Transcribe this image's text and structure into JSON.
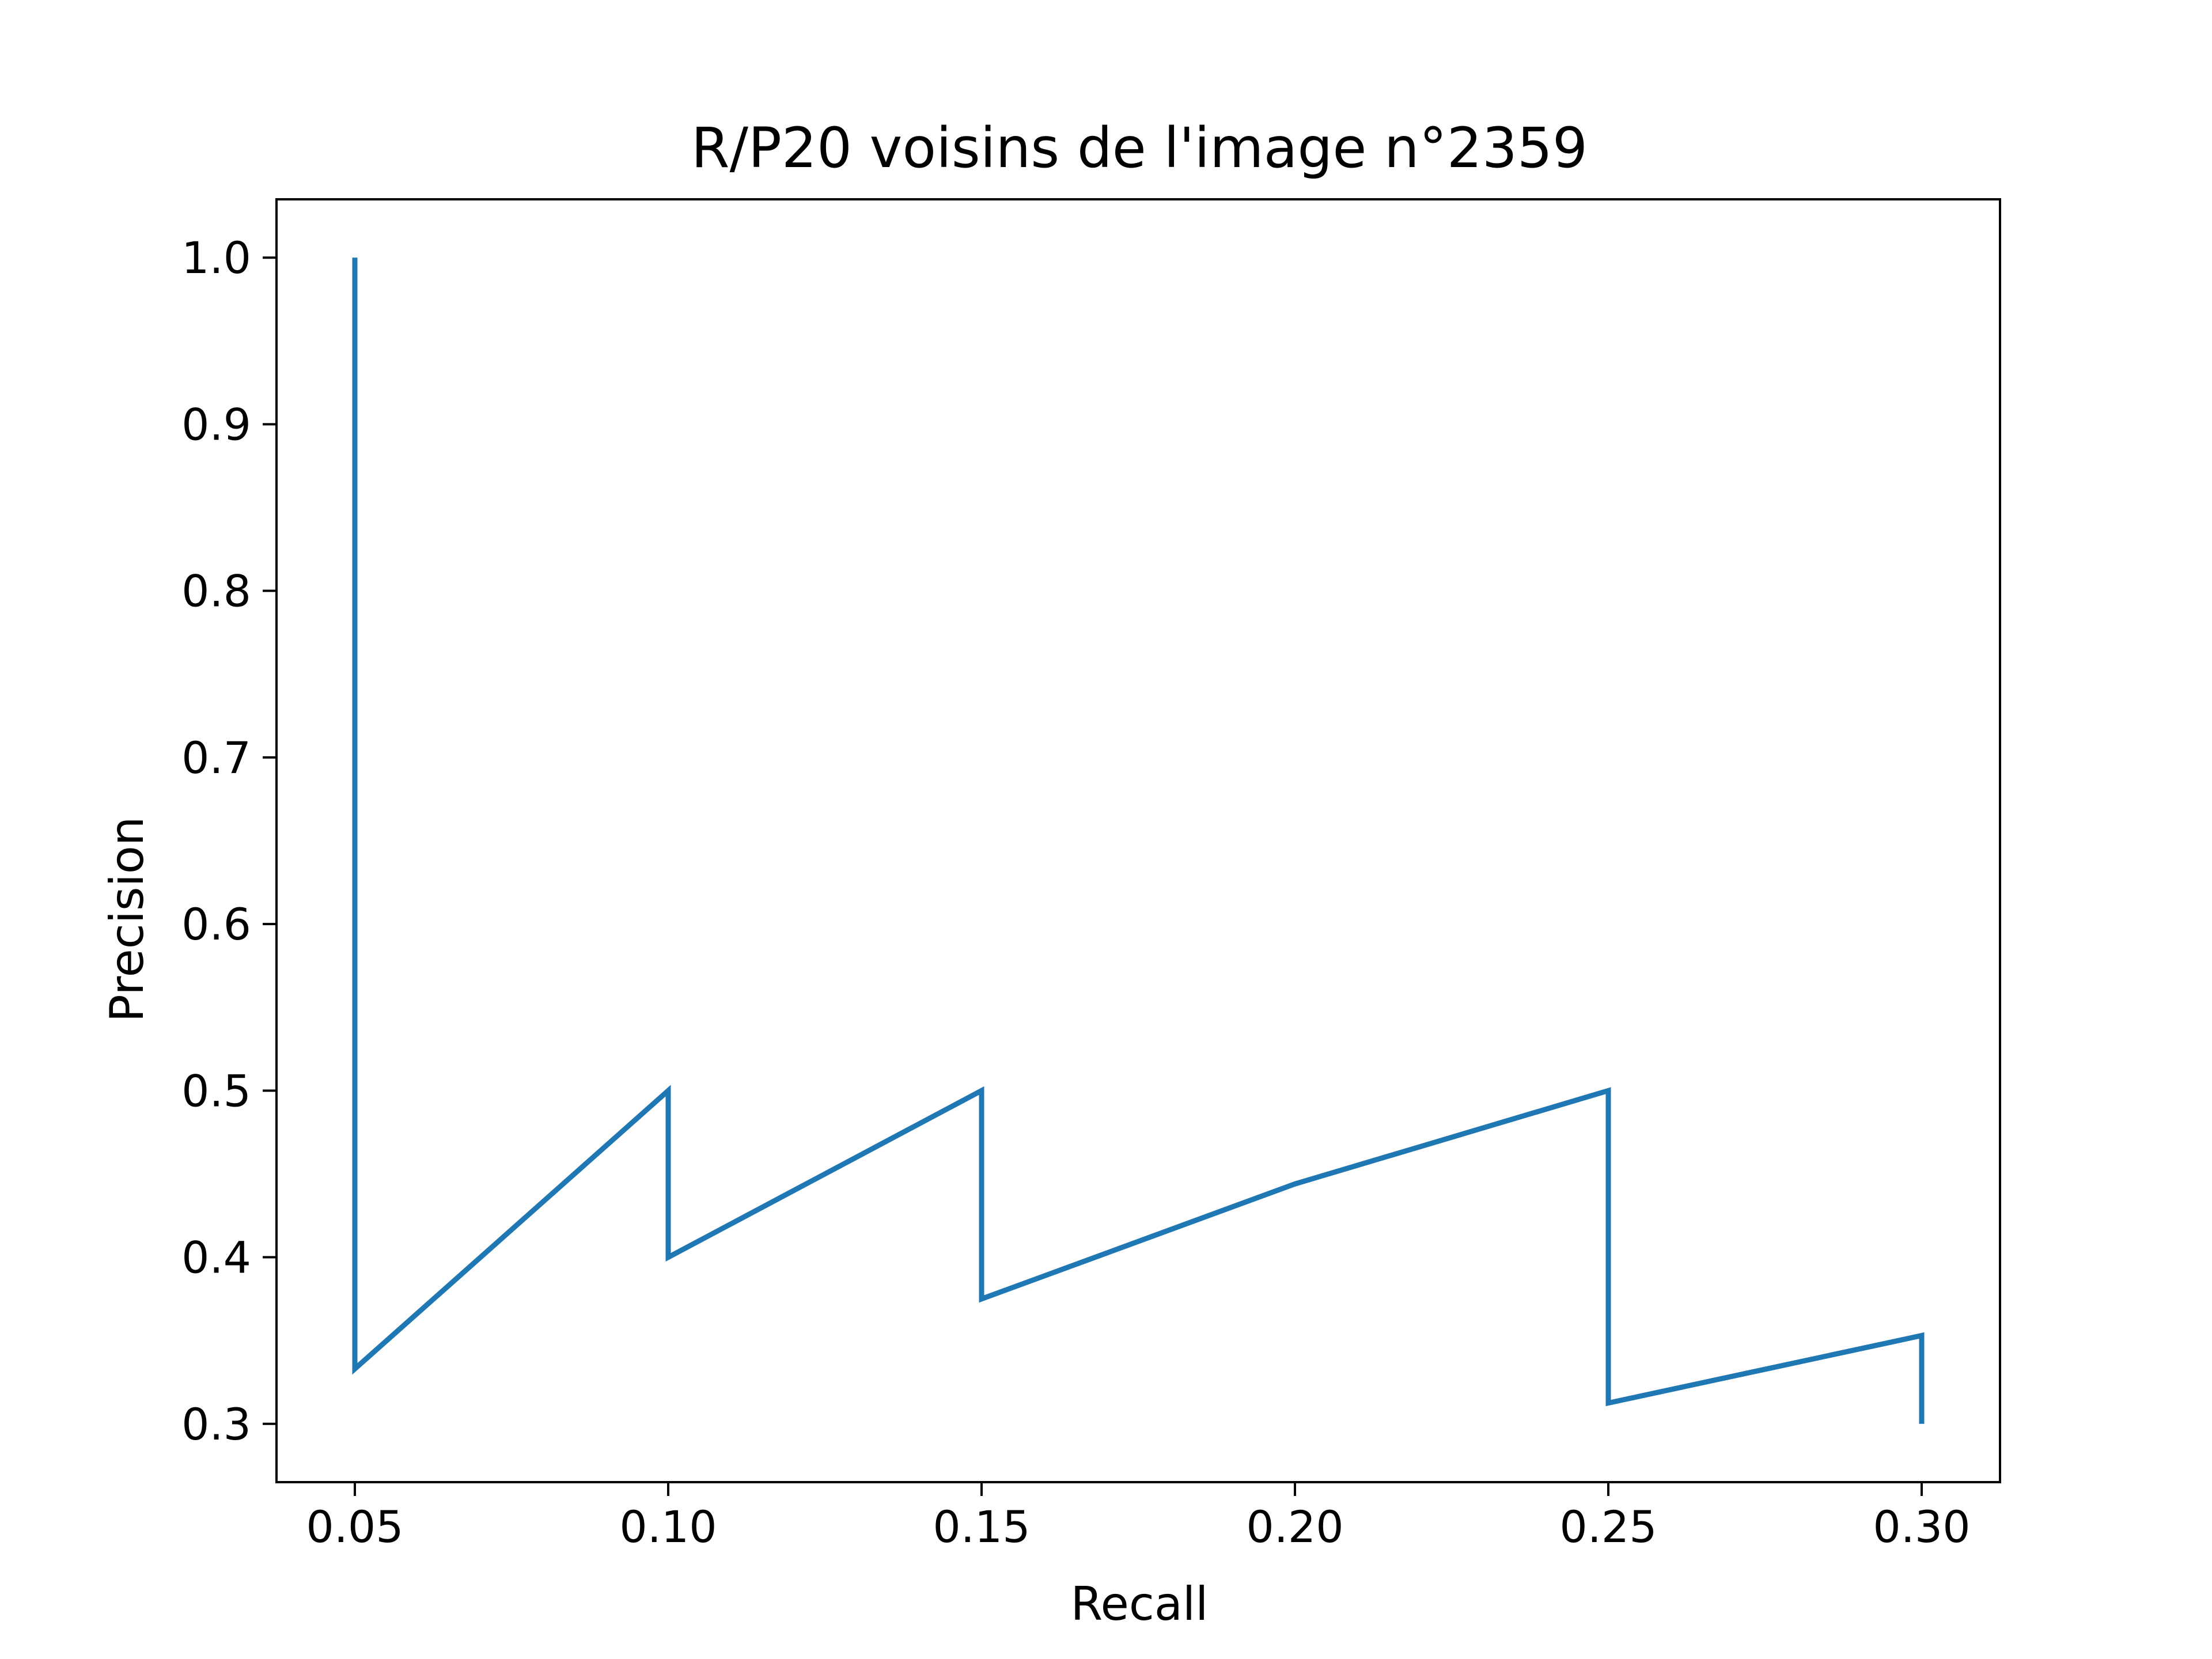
{
  "chart_data": {
    "type": "line",
    "title": "R/P20 voisins de l'image n°2359",
    "xlabel": "Recall",
    "ylabel": "Precision",
    "xlim": [
      0.0375,
      0.3125
    ],
    "ylim": [
      0.265,
      1.035
    ],
    "xticks": [
      0.05,
      0.1,
      0.15,
      0.2,
      0.25,
      0.3
    ],
    "xtick_labels": [
      "0.05",
      "0.10",
      "0.15",
      "0.20",
      "0.25",
      "0.30"
    ],
    "yticks": [
      0.3,
      0.4,
      0.5,
      0.6,
      0.7,
      0.8,
      0.9,
      1.0
    ],
    "ytick_labels": [
      "0.3",
      "0.4",
      "0.5",
      "0.6",
      "0.7",
      "0.8",
      "0.9",
      "1.0"
    ],
    "grid": false,
    "series": [
      {
        "color": "#1f77b4",
        "x": [
          0.05,
          0.05,
          0.1,
          0.1,
          0.15,
          0.15,
          0.2,
          0.25,
          0.25,
          0.3,
          0.3
        ],
        "y": [
          1.0,
          0.333,
          0.5,
          0.4,
          0.5,
          0.375,
          0.444,
          0.5,
          0.3125,
          0.353,
          0.3
        ]
      }
    ]
  }
}
